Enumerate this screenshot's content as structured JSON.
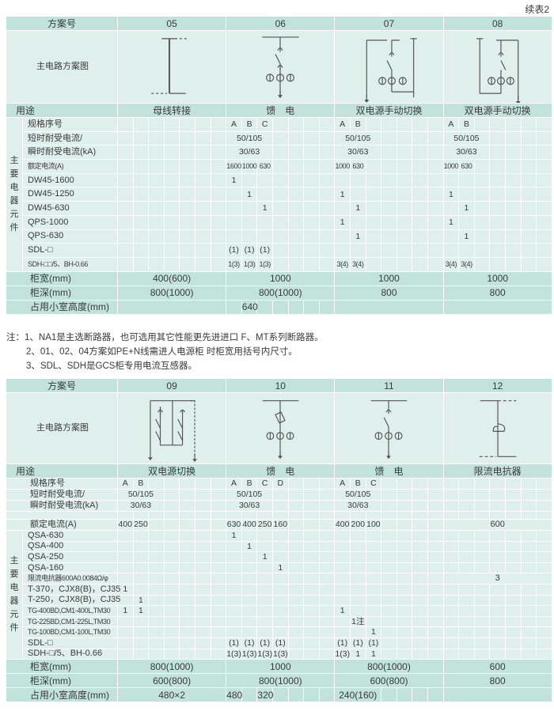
{
  "continued_label": "续表2",
  "tables": [
    {
      "header_label": "方案号",
      "schemes": [
        "05",
        "06",
        "07",
        "08"
      ],
      "diagram_label": "主电路方案图",
      "usage_label": "用途",
      "usages": [
        "母线转接",
        "馈　电",
        "双电源手动切换",
        "双电源手动切换"
      ],
      "group_label": "主要电器元件",
      "rows": [
        {
          "label": "规格序号",
          "grouped": true,
          "cells": [
            [],
            [
              "A",
              "B",
              "C"
            ],
            [
              "A",
              "B"
            ],
            [
              "A",
              "B"
            ]
          ]
        },
        {
          "label": "短时耐受电流/",
          "grouped": true,
          "cells": [
            [],
            [
              "50/105"
            ],
            [
              "50/105"
            ],
            [
              "50/105"
            ]
          ]
        },
        {
          "label": "瞬时耐受电流(kA)",
          "grouped": true,
          "cells": [
            [],
            [
              "30/63"
            ],
            [
              "30/63"
            ],
            [
              "30/63"
            ]
          ]
        },
        {
          "label": "额定电流(A)",
          "grouped": true,
          "small": true,
          "cells": [
            [],
            [
              "1600",
              "1000",
              "630"
            ],
            [
              "1000",
              "630"
            ],
            [
              "1000",
              "630"
            ]
          ]
        },
        {
          "label": "DW45-1600",
          "grouped": true,
          "cells": [
            [],
            [
              "1"
            ],
            [],
            []
          ]
        },
        {
          "label": "DW45-1250",
          "grouped": true,
          "cells": [
            [],
            [
              "",
              "1"
            ],
            [
              "1"
            ],
            [
              "1"
            ]
          ]
        },
        {
          "label": "DW45-630",
          "grouped": true,
          "cells": [
            [],
            [
              "",
              "",
              "1"
            ],
            [
              "",
              "1"
            ],
            [
              "",
              "1"
            ]
          ]
        },
        {
          "label": "QPS-1000",
          "grouped": true,
          "cells": [
            [],
            [],
            [
              "1"
            ],
            [
              "1"
            ]
          ]
        },
        {
          "label": "QPS-630",
          "grouped": true,
          "cells": [
            [],
            [],
            [
              "",
              "1"
            ],
            [
              "",
              "1"
            ]
          ]
        },
        {
          "label": "SDL-□",
          "grouped": true,
          "cells": [
            [],
            [
              "(1)",
              "(1)",
              "(1)"
            ],
            [],
            []
          ]
        },
        {
          "label": "SDH-□□/5、BH-0.66",
          "grouped": true,
          "small": true,
          "cells": [
            [],
            [
              "1(3)",
              "1(3)",
              "1(3)"
            ],
            [
              "3(4)",
              "3(4)"
            ],
            [
              "3(4)",
              "3(4)"
            ]
          ]
        }
      ],
      "footer_rows": [
        {
          "label": "柜宽(mm)",
          "cells": [
            "400(600)",
            "1000",
            "1000",
            "1000"
          ]
        },
        {
          "label": "柜深(mm)",
          "cells": [
            "800(1000)",
            "800(1000)",
            "800",
            "800"
          ]
        },
        {
          "label": "占用小室高度(mm)",
          "cells": [
            "",
            [
              "",
              "640"
            ],
            "",
            ""
          ]
        }
      ]
    },
    {
      "header_label": "方案号",
      "schemes": [
        "09",
        "10",
        "11",
        "12"
      ],
      "diagram_label": "主电路方案图",
      "usage_label": "用途",
      "usages": [
        "双电源切换",
        "馈　电",
        "馈　电",
        "限流电抗器"
      ],
      "group_label": "主要电器元件",
      "rows": [
        {
          "label": "规格序号",
          "grouped": false,
          "cells": [
            [
              "A",
              "B"
            ],
            [
              "A",
              "B",
              "C",
              "D"
            ],
            [
              "A",
              "B",
              "C"
            ],
            []
          ]
        },
        {
          "label": "短时耐受电流/",
          "grouped": false,
          "cells": [
            [
              "50/105"
            ],
            [
              "50/105"
            ],
            [
              "50/105"
            ],
            []
          ]
        },
        {
          "label": "瞬时耐受电流(kA)",
          "grouped": false,
          "cells": [
            [
              "30/63"
            ],
            [
              "30/63"
            ],
            [
              "30/63"
            ],
            []
          ]
        },
        {
          "label": "",
          "grouped": false,
          "cells": [
            [],
            [],
            [],
            []
          ]
        },
        {
          "label": "额定电流(A)",
          "grouped": false,
          "cells": [
            [
              "400",
              "250"
            ],
            [
              "630",
              "400",
              "250",
              "160"
            ],
            [
              "400",
              "200",
              "100"
            ],
            "600"
          ]
        },
        {
          "label": "QSA-630",
          "grouped": true,
          "cells": [
            [],
            [
              "1"
            ],
            [],
            []
          ]
        },
        {
          "label": "QSA-400",
          "grouped": true,
          "cells": [
            [],
            [
              "",
              "1"
            ],
            [],
            []
          ]
        },
        {
          "label": "QSA-250",
          "grouped": true,
          "cells": [
            [],
            [
              "",
              "",
              "1"
            ],
            [],
            []
          ]
        },
        {
          "label": "QSA-160",
          "grouped": true,
          "cells": [
            [],
            [
              "",
              "",
              "",
              "1"
            ],
            [],
            []
          ]
        },
        {
          "label": "限流电抗器600A0.0084Ω/φ",
          "grouped": true,
          "small": true,
          "cells": [
            [],
            [],
            [],
            "3"
          ]
        },
        {
          "label": "T-370，CJX8(B)，CJ35",
          "grouped": true,
          "cells": [
            [
              "1"
            ],
            [],
            [],
            []
          ]
        },
        {
          "label": "T-250，CJX8(B)，CJ35",
          "grouped": true,
          "cells": [
            [
              "",
              "1"
            ],
            [],
            [],
            []
          ]
        },
        {
          "label": "TG-400BD,CM1-400L,TM30",
          "grouped": true,
          "small": true,
          "cells": [
            [
              "1",
              "1"
            ],
            [],
            [
              "1"
            ],
            []
          ]
        },
        {
          "label": "TG-225BD,CM1-225L,TM30",
          "grouped": true,
          "small": true,
          "cells": [
            [],
            [],
            [
              "",
              "1注"
            ],
            []
          ]
        },
        {
          "label": "TG-100BD,CM1-100L,TM30",
          "grouped": true,
          "small": true,
          "cells": [
            [],
            [],
            [
              "",
              "",
              "1"
            ],
            []
          ]
        },
        {
          "label": "SDL-□",
          "grouped": true,
          "cells": [
            [],
            [
              "(1)",
              "(1)",
              "(1)",
              "(1)"
            ],
            [
              "(1)",
              "(1)",
              "(1)"
            ],
            []
          ]
        },
        {
          "label": "SDH-□/5、BH-0.66",
          "grouped": true,
          "cells": [
            [],
            [
              "1(3)",
              "1(3)",
              "1(3)",
              "1(3)"
            ],
            [
              "1(3)",
              "1",
              "1"
            ],
            []
          ]
        }
      ],
      "footer_rows": [
        {
          "label": "柜宽(mm)",
          "cells": [
            "800(1000)",
            "1000",
            "800(1000)",
            "600"
          ]
        },
        {
          "label": "柜深(mm)",
          "cells": [
            "600(800)",
            "800(1000)",
            "600(800)",
            "800"
          ]
        },
        {
          "label": "占用小室高度(mm)",
          "cells": [
            "480×2",
            [
              "480",
              "",
              "320"
            ],
            [
              "240(160)"
            ],
            ""
          ]
        }
      ]
    }
  ],
  "notes": [
    "注：1、NA1是主选断路器，也可选用其它性能更先进进口 F、MT系列断路器。",
    "2、01、02、04方案如PE+N线需进人电源柜 时柜宽用括号内尺寸。",
    "3、SDL、SDH是GCS柜专用电流互感器。"
  ]
}
